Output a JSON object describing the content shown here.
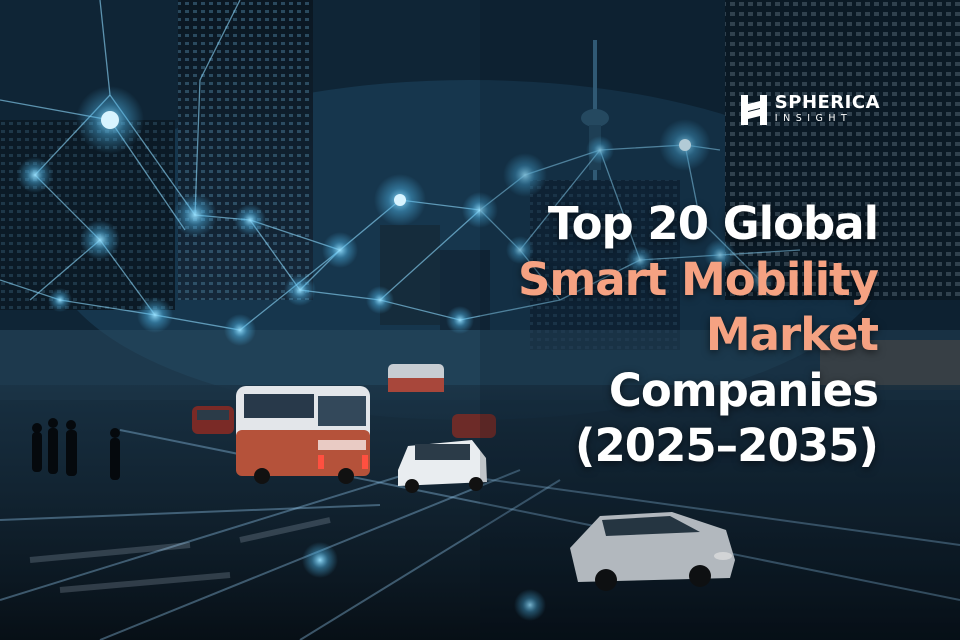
{
  "brand": {
    "name": "SPHERICA",
    "tagline": "INSIGHT",
    "icon": "spherica-logo-mark-icon"
  },
  "headline": {
    "lines": [
      "Top 20 Global",
      "Smart Mobility",
      "Market",
      "Companies",
      "(2025–2035)"
    ]
  },
  "colors": {
    "headline_primary": "#ffffff",
    "headline_accent": "#f5a282",
    "network_glow": "#7fd3ff",
    "background": "#0d2131"
  }
}
